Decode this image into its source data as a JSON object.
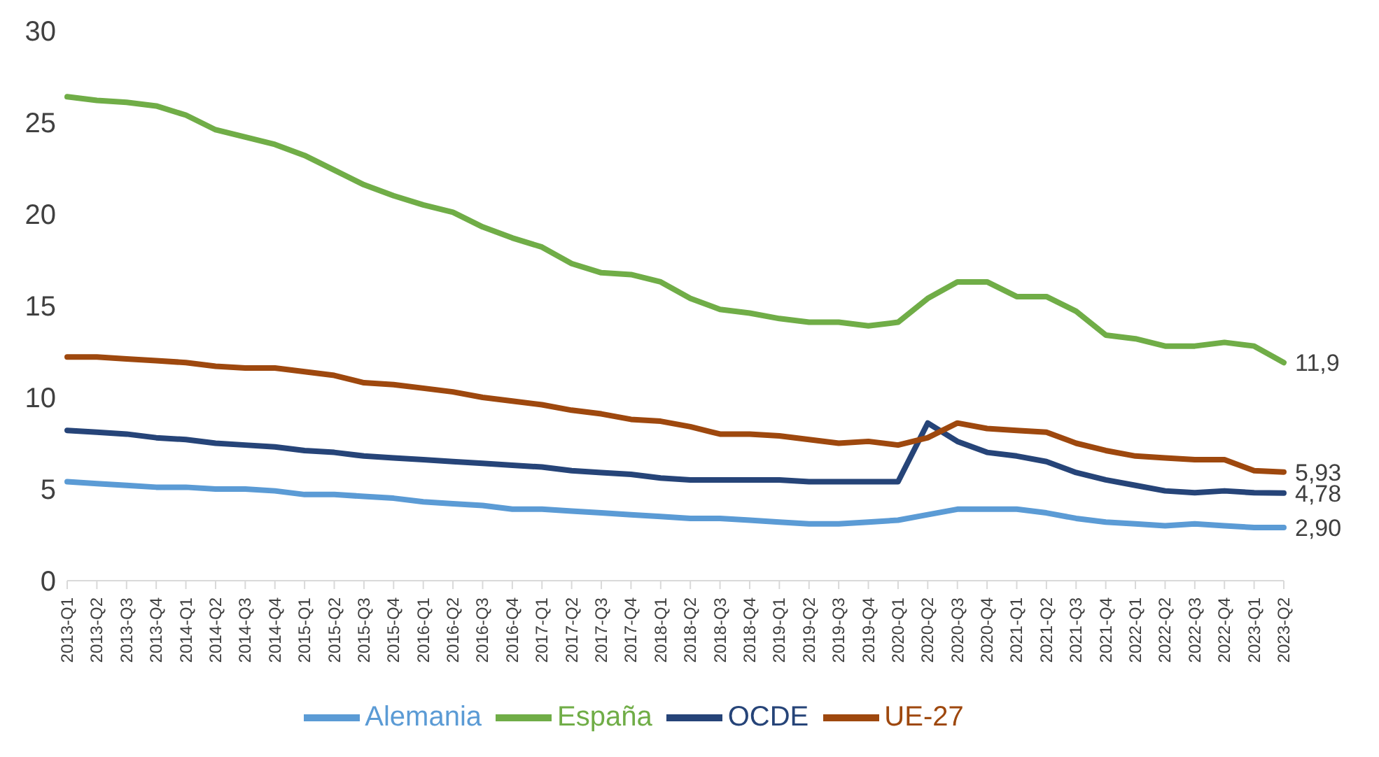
{
  "chart_data": {
    "type": "line",
    "categories": [
      "2013-Q1",
      "2013-Q2",
      "2013-Q3",
      "2013-Q4",
      "2014-Q1",
      "2014-Q2",
      "2014-Q3",
      "2014-Q4",
      "2015-Q1",
      "2015-Q2",
      "2015-Q3",
      "2015-Q4",
      "2016-Q1",
      "2016-Q2",
      "2016-Q3",
      "2016-Q4",
      "2017-Q1",
      "2017-Q2",
      "2017-Q3",
      "2017-Q4",
      "2018-Q1",
      "2018-Q2",
      "2018-Q3",
      "2018-Q4",
      "2019-Q1",
      "2019-Q2",
      "2019-Q3",
      "2019-Q4",
      "2020-Q1",
      "2020-Q2",
      "2020-Q3",
      "2020-Q4",
      "2021-Q1",
      "2021-Q2",
      "2021-Q3",
      "2021-Q4",
      "2022-Q1",
      "2022-Q2",
      "2022-Q3",
      "2022-Q4",
      "2023-Q1",
      "2023-Q2"
    ],
    "series": [
      {
        "name": "Alemania",
        "color": "#5b9bd5",
        "values": [
          5.4,
          5.3,
          5.2,
          5.1,
          5.1,
          5.0,
          5.0,
          4.9,
          4.7,
          4.7,
          4.6,
          4.5,
          4.3,
          4.2,
          4.1,
          3.9,
          3.9,
          3.8,
          3.7,
          3.6,
          3.5,
          3.4,
          3.4,
          3.3,
          3.2,
          3.1,
          3.1,
          3.2,
          3.3,
          3.6,
          3.9,
          3.9,
          3.9,
          3.7,
          3.4,
          3.2,
          3.1,
          3.0,
          3.1,
          3.0,
          2.9,
          2.9
        ],
        "value_labels": [
          null,
          null,
          null,
          null,
          null,
          null,
          null,
          null,
          null,
          null,
          null,
          null,
          null,
          null,
          null,
          null,
          null,
          null,
          null,
          null,
          null,
          null,
          null,
          null,
          null,
          null,
          null,
          null,
          null,
          null,
          null,
          null,
          null,
          null,
          null,
          null,
          null,
          null,
          null,
          null,
          null,
          "2,90"
        ]
      },
      {
        "name": "España",
        "color": "#70ad47",
        "values": [
          26.4,
          26.2,
          26.1,
          25.9,
          25.4,
          24.6,
          24.2,
          23.8,
          23.2,
          22.4,
          21.6,
          21.0,
          20.5,
          20.1,
          19.3,
          18.7,
          18.2,
          17.3,
          16.8,
          16.7,
          16.3,
          15.4,
          14.8,
          14.6,
          14.3,
          14.1,
          14.1,
          13.9,
          14.1,
          15.4,
          16.3,
          16.3,
          15.5,
          15.5,
          14.7,
          13.4,
          13.2,
          12.8,
          12.8,
          13.0,
          12.8,
          11.9
        ],
        "value_labels": [
          null,
          null,
          null,
          null,
          null,
          null,
          null,
          null,
          null,
          null,
          null,
          null,
          null,
          null,
          null,
          null,
          null,
          null,
          null,
          null,
          null,
          null,
          null,
          null,
          null,
          null,
          null,
          null,
          null,
          null,
          null,
          null,
          null,
          null,
          null,
          null,
          null,
          null,
          null,
          null,
          null,
          "11,9"
        ]
      },
      {
        "name": "OCDE",
        "color": "#264478",
        "values": [
          8.2,
          8.1,
          8.0,
          7.8,
          7.7,
          7.5,
          7.4,
          7.3,
          7.1,
          7.0,
          6.8,
          6.7,
          6.6,
          6.5,
          6.4,
          6.3,
          6.2,
          6.0,
          5.9,
          5.8,
          5.6,
          5.5,
          5.5,
          5.5,
          5.5,
          5.4,
          5.4,
          5.4,
          5.4,
          8.6,
          7.6,
          7.0,
          6.8,
          6.5,
          5.9,
          5.5,
          5.2,
          4.9,
          4.8,
          4.9,
          4.8,
          4.78
        ],
        "value_labels": [
          null,
          null,
          null,
          null,
          null,
          null,
          null,
          null,
          null,
          null,
          null,
          null,
          null,
          null,
          null,
          null,
          null,
          null,
          null,
          null,
          null,
          null,
          null,
          null,
          null,
          null,
          null,
          null,
          null,
          null,
          null,
          null,
          null,
          null,
          null,
          null,
          null,
          null,
          null,
          null,
          null,
          "4,78"
        ]
      },
      {
        "name": "UE-27",
        "color": "#9e480e",
        "values": [
          12.2,
          12.2,
          12.1,
          12.0,
          11.9,
          11.7,
          11.6,
          11.6,
          11.4,
          11.2,
          10.8,
          10.7,
          10.5,
          10.3,
          10.0,
          9.8,
          9.6,
          9.3,
          9.1,
          8.8,
          8.7,
          8.4,
          8.0,
          8.0,
          7.9,
          7.7,
          7.5,
          7.6,
          7.4,
          7.8,
          8.6,
          8.3,
          8.2,
          8.1,
          7.5,
          7.1,
          6.8,
          6.7,
          6.6,
          6.6,
          6.0,
          5.93
        ],
        "value_labels": [
          null,
          null,
          null,
          null,
          null,
          null,
          null,
          null,
          null,
          null,
          null,
          null,
          null,
          null,
          null,
          null,
          null,
          null,
          null,
          null,
          null,
          null,
          null,
          null,
          null,
          null,
          null,
          null,
          null,
          null,
          null,
          null,
          null,
          null,
          null,
          null,
          null,
          null,
          null,
          null,
          null,
          "5,93"
        ]
      }
    ],
    "ylim": [
      0,
      30
    ],
    "yticks": [
      0,
      5,
      10,
      15,
      20,
      25,
      30
    ],
    "grid": false,
    "legend": "bottom",
    "marker": "none",
    "line_style": "solid"
  }
}
